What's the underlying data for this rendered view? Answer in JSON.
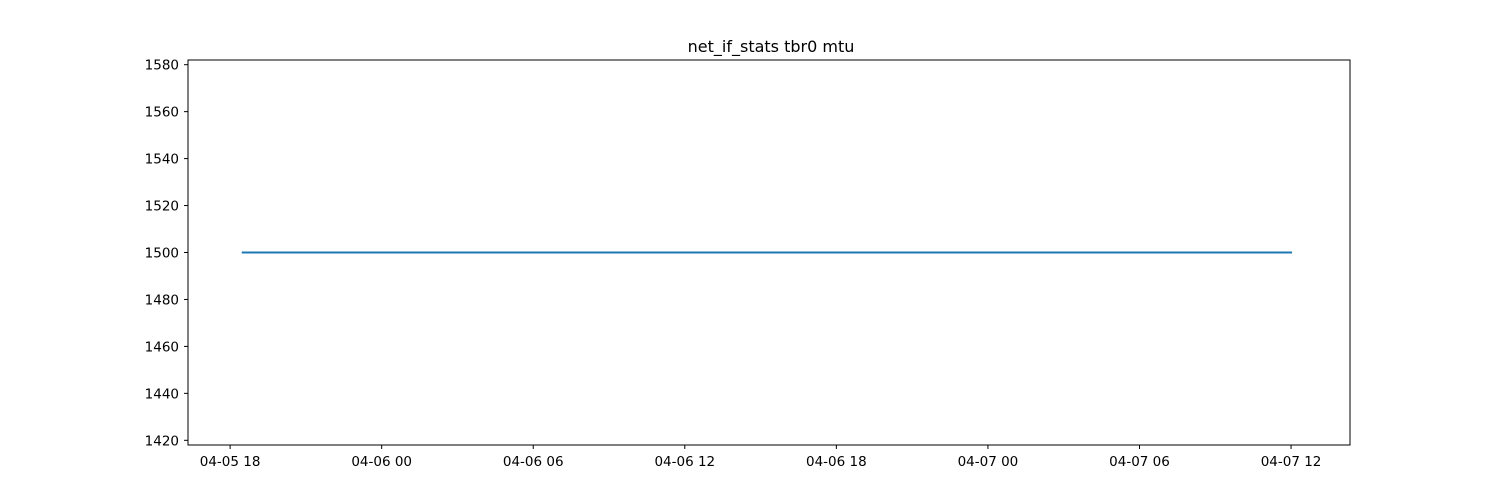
{
  "chart_data": {
    "type": "line",
    "title": "net_if_stats tbr0 mtu",
    "xlabel": "",
    "ylabel": "",
    "x_axis_type": "datetime",
    "xlim": [
      "2024-04-05T16:20",
      "2024-04-07T14:20"
    ],
    "ylim": [
      1418,
      1582
    ],
    "x_ticks": [
      {
        "value": "2024-04-05T18:00",
        "label": "04-05 18"
      },
      {
        "value": "2024-04-06T00:00",
        "label": "04-06 00"
      },
      {
        "value": "2024-04-06T06:00",
        "label": "04-06 06"
      },
      {
        "value": "2024-04-06T12:00",
        "label": "04-06 12"
      },
      {
        "value": "2024-04-06T18:00",
        "label": "04-06 18"
      },
      {
        "value": "2024-04-07T00:00",
        "label": "04-07 00"
      },
      {
        "value": "2024-04-07T06:00",
        "label": "04-07 06"
      },
      {
        "value": "2024-04-07T12:00",
        "label": "04-07 12"
      }
    ],
    "y_ticks": [
      1420,
      1440,
      1460,
      1480,
      1500,
      1520,
      1540,
      1560,
      1580
    ],
    "grid": false,
    "legend": "none",
    "series": [
      {
        "color": "#1f77b4",
        "x": [
          "2024-04-05T18:30",
          "2024-04-07T12:00"
        ],
        "y": [
          1500,
          1500
        ]
      }
    ]
  }
}
